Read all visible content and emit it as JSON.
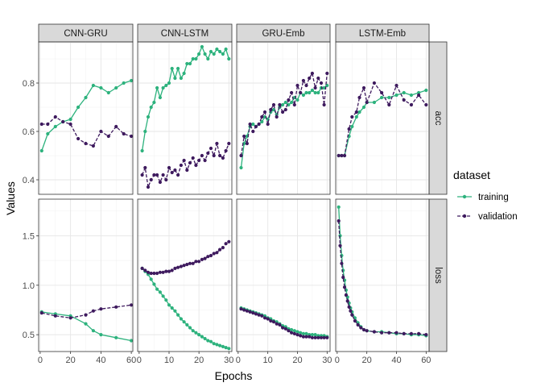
{
  "chart_data": {
    "type": "line",
    "xlabel": "Epochs",
    "ylabel": "Values",
    "legend_title": "dataset",
    "legend_position": "right",
    "grid": true,
    "colors": {
      "training": "#2db27d",
      "validation": "#3e1a5e"
    },
    "panels_x": [
      "CNN-GRU",
      "CNN-LSTM",
      "GRU-Emb",
      "LSTM-Emb"
    ],
    "panels_y": [
      "acc",
      "loss"
    ],
    "xlim": {
      "CNN-GRU": [
        -1,
        61
      ],
      "CNN-LSTM": [
        -0.5,
        31
      ],
      "GRU-Emb": [
        -0.5,
        31
      ],
      "LSTM-Emb": [
        -1,
        62
      ]
    },
    "xticks": {
      "CNN-GRU": [
        0,
        20,
        40,
        60
      ],
      "CNN-LSTM": [
        0,
        10,
        20,
        30
      ],
      "GRU-Emb": [
        0,
        10,
        20,
        30
      ],
      "LSTM-Emb": [
        0,
        20,
        40,
        60
      ]
    },
    "ylim": {
      "acc": [
        0.34,
        0.97
      ],
      "loss": [
        0.33,
        1.87
      ]
    },
    "yticks": {
      "acc": [
        0.4,
        0.6,
        0.8
      ],
      "loss": [
        0.5,
        1.0,
        1.5
      ]
    },
    "series": [
      {
        "model": "CNN-GRU",
        "metric": "acc",
        "name": "training",
        "x": [
          1,
          5,
          10,
          15,
          20,
          25,
          30,
          35,
          40,
          45,
          50,
          55,
          60
        ],
        "y": [
          0.52,
          0.59,
          0.62,
          0.64,
          0.65,
          0.7,
          0.74,
          0.79,
          0.78,
          0.76,
          0.78,
          0.8,
          0.81
        ]
      },
      {
        "model": "CNN-GRU",
        "metric": "acc",
        "name": "validation",
        "x": [
          1,
          5,
          10,
          15,
          20,
          25,
          30,
          35,
          40,
          45,
          50,
          55,
          60
        ],
        "y": [
          0.63,
          0.63,
          0.66,
          0.64,
          0.63,
          0.57,
          0.55,
          0.54,
          0.6,
          0.58,
          0.62,
          0.59,
          0.58
        ]
      },
      {
        "model": "CNN-GRU",
        "metric": "loss",
        "name": "training",
        "x": [
          1,
          10,
          20,
          30,
          35,
          40,
          50,
          60
        ],
        "y": [
          0.73,
          0.71,
          0.69,
          0.61,
          0.54,
          0.5,
          0.47,
          0.44
        ]
      },
      {
        "model": "CNN-GRU",
        "metric": "loss",
        "name": "validation",
        "x": [
          1,
          10,
          20,
          30,
          35,
          40,
          50,
          60
        ],
        "y": [
          0.72,
          0.69,
          0.67,
          0.7,
          0.74,
          0.76,
          0.78,
          0.8
        ]
      },
      {
        "model": "CNN-LSTM",
        "metric": "acc",
        "name": "training",
        "x": [
          1,
          2,
          3,
          4,
          5,
          6,
          7,
          8,
          9,
          10,
          11,
          12,
          13,
          14,
          15,
          16,
          17,
          18,
          19,
          20,
          21,
          22,
          23,
          24,
          25,
          26,
          27,
          28,
          29,
          30
        ],
        "y": [
          0.52,
          0.6,
          0.66,
          0.7,
          0.72,
          0.78,
          0.74,
          0.78,
          0.79,
          0.8,
          0.86,
          0.82,
          0.86,
          0.82,
          0.84,
          0.88,
          0.88,
          0.9,
          0.9,
          0.92,
          0.95,
          0.92,
          0.9,
          0.93,
          0.92,
          0.94,
          0.93,
          0.92,
          0.94,
          0.9
        ]
      },
      {
        "model": "CNN-LSTM",
        "metric": "acc",
        "name": "validation",
        "x": [
          1,
          2,
          3,
          4,
          5,
          6,
          7,
          8,
          9,
          10,
          11,
          12,
          13,
          14,
          15,
          16,
          17,
          18,
          19,
          20,
          21,
          22,
          23,
          24,
          25,
          26,
          27,
          28,
          29,
          30
        ],
        "y": [
          0.42,
          0.45,
          0.37,
          0.4,
          0.42,
          0.42,
          0.39,
          0.42,
          0.4,
          0.45,
          0.43,
          0.44,
          0.42,
          0.46,
          0.48,
          0.44,
          0.47,
          0.49,
          0.46,
          0.48,
          0.5,
          0.48,
          0.51,
          0.53,
          0.5,
          0.55,
          0.5,
          0.49,
          0.52,
          0.55
        ]
      },
      {
        "model": "CNN-LSTM",
        "metric": "loss",
        "name": "training",
        "x": [
          1,
          2,
          3,
          4,
          5,
          6,
          7,
          8,
          9,
          10,
          11,
          12,
          13,
          14,
          15,
          16,
          17,
          18,
          19,
          20,
          21,
          22,
          23,
          24,
          25,
          26,
          27,
          28,
          29,
          30
        ],
        "y": [
          1.17,
          1.14,
          1.11,
          1.06,
          1.01,
          0.96,
          0.93,
          0.89,
          0.85,
          0.8,
          0.77,
          0.74,
          0.7,
          0.66,
          0.63,
          0.6,
          0.57,
          0.54,
          0.52,
          0.5,
          0.48,
          0.46,
          0.44,
          0.43,
          0.41,
          0.4,
          0.39,
          0.38,
          0.37,
          0.36
        ]
      },
      {
        "model": "CNN-LSTM",
        "metric": "loss",
        "name": "validation",
        "x": [
          1,
          2,
          3,
          4,
          5,
          6,
          7,
          8,
          9,
          10,
          11,
          12,
          13,
          14,
          15,
          16,
          17,
          18,
          19,
          20,
          21,
          22,
          23,
          24,
          25,
          26,
          27,
          28,
          29,
          30
        ],
        "y": [
          1.17,
          1.15,
          1.13,
          1.12,
          1.12,
          1.12,
          1.13,
          1.13,
          1.14,
          1.14,
          1.15,
          1.17,
          1.18,
          1.19,
          1.2,
          1.21,
          1.22,
          1.22,
          1.24,
          1.24,
          1.26,
          1.27,
          1.29,
          1.3,
          1.32,
          1.33,
          1.36,
          1.38,
          1.42,
          1.44
        ]
      },
      {
        "model": "GRU-Emb",
        "metric": "acc",
        "name": "training",
        "x": [
          1,
          2,
          3,
          4,
          5,
          6,
          7,
          8,
          9,
          10,
          11,
          12,
          13,
          14,
          15,
          16,
          17,
          18,
          19,
          20,
          21,
          22,
          23,
          24,
          25,
          26,
          27,
          28,
          29,
          30
        ],
        "y": [
          0.45,
          0.55,
          0.58,
          0.62,
          0.63,
          0.62,
          0.63,
          0.64,
          0.66,
          0.65,
          0.68,
          0.69,
          0.67,
          0.7,
          0.71,
          0.72,
          0.71,
          0.72,
          0.74,
          0.73,
          0.76,
          0.75,
          0.76,
          0.76,
          0.77,
          0.76,
          0.76,
          0.78,
          0.78,
          0.79
        ]
      },
      {
        "model": "GRU-Emb",
        "metric": "acc",
        "name": "validation",
        "x": [
          1,
          2,
          3,
          4,
          5,
          6,
          7,
          8,
          9,
          10,
          11,
          12,
          13,
          14,
          15,
          16,
          17,
          18,
          19,
          20,
          21,
          22,
          23,
          24,
          25,
          26,
          27,
          28,
          29,
          30
        ],
        "y": [
          0.5,
          0.58,
          0.55,
          0.63,
          0.6,
          0.62,
          0.63,
          0.66,
          0.68,
          0.63,
          0.69,
          0.71,
          0.66,
          0.71,
          0.68,
          0.69,
          0.73,
          0.76,
          0.71,
          0.79,
          0.76,
          0.81,
          0.79,
          0.82,
          0.84,
          0.78,
          0.82,
          0.8,
          0.71,
          0.84
        ]
      },
      {
        "model": "GRU-Emb",
        "metric": "loss",
        "name": "training",
        "x": [
          1,
          2,
          3,
          4,
          5,
          6,
          7,
          8,
          9,
          10,
          11,
          12,
          13,
          14,
          15,
          16,
          17,
          18,
          19,
          20,
          21,
          22,
          23,
          24,
          25,
          26,
          27,
          28,
          29,
          30
        ],
        "y": [
          0.77,
          0.76,
          0.75,
          0.74,
          0.73,
          0.72,
          0.71,
          0.7,
          0.69,
          0.67,
          0.66,
          0.64,
          0.63,
          0.61,
          0.59,
          0.58,
          0.56,
          0.55,
          0.54,
          0.53,
          0.52,
          0.51,
          0.51,
          0.5,
          0.5,
          0.5,
          0.49,
          0.49,
          0.49,
          0.48
        ]
      },
      {
        "model": "GRU-Emb",
        "metric": "loss",
        "name": "validation",
        "x": [
          1,
          2,
          3,
          4,
          5,
          6,
          7,
          8,
          9,
          10,
          11,
          12,
          13,
          14,
          15,
          16,
          17,
          18,
          19,
          20,
          21,
          22,
          23,
          24,
          25,
          26,
          27,
          28,
          29,
          30
        ],
        "y": [
          0.76,
          0.75,
          0.74,
          0.73,
          0.72,
          0.71,
          0.7,
          0.69,
          0.67,
          0.66,
          0.64,
          0.63,
          0.61,
          0.6,
          0.57,
          0.56,
          0.54,
          0.52,
          0.51,
          0.5,
          0.49,
          0.48,
          0.48,
          0.48,
          0.47,
          0.47,
          0.47,
          0.47,
          0.47,
          0.47
        ]
      },
      {
        "model": "LSTM-Emb",
        "metric": "acc",
        "name": "training",
        "x": [
          1,
          3,
          5,
          8,
          10,
          13,
          15,
          18,
          20,
          25,
          30,
          35,
          40,
          45,
          50,
          55,
          60
        ],
        "y": [
          0.5,
          0.5,
          0.5,
          0.58,
          0.62,
          0.66,
          0.68,
          0.7,
          0.72,
          0.72,
          0.74,
          0.74,
          0.75,
          0.76,
          0.75,
          0.76,
          0.77
        ]
      },
      {
        "model": "LSTM-Emb",
        "metric": "acc",
        "name": "validation",
        "x": [
          1,
          3,
          5,
          8,
          10,
          13,
          15,
          18,
          20,
          25,
          30,
          35,
          40,
          45,
          50,
          55,
          60
        ],
        "y": [
          0.5,
          0.5,
          0.5,
          0.61,
          0.66,
          0.68,
          0.74,
          0.78,
          0.72,
          0.8,
          0.76,
          0.71,
          0.79,
          0.73,
          0.71,
          0.75,
          0.71
        ]
      },
      {
        "model": "LSTM-Emb",
        "metric": "loss",
        "name": "training",
        "x": [
          1,
          2,
          3,
          4,
          5,
          6,
          7,
          8,
          9,
          10,
          12,
          14,
          16,
          18,
          20,
          25,
          30,
          35,
          40,
          45,
          50,
          55,
          60
        ],
        "y": [
          1.79,
          1.5,
          1.3,
          1.15,
          1.05,
          0.95,
          0.88,
          0.82,
          0.77,
          0.73,
          0.67,
          0.62,
          0.58,
          0.55,
          0.54,
          0.53,
          0.53,
          0.52,
          0.51,
          0.51,
          0.5,
          0.5,
          0.49
        ]
      },
      {
        "model": "LSTM-Emb",
        "metric": "loss",
        "name": "validation",
        "x": [
          1,
          2,
          3,
          4,
          5,
          6,
          7,
          8,
          9,
          10,
          12,
          14,
          16,
          18,
          20,
          25,
          30,
          35,
          40,
          45,
          50,
          55,
          60
        ],
        "y": [
          1.65,
          1.4,
          1.22,
          1.08,
          0.98,
          0.9,
          0.84,
          0.78,
          0.74,
          0.7,
          0.64,
          0.6,
          0.57,
          0.55,
          0.54,
          0.53,
          0.52,
          0.52,
          0.52,
          0.51,
          0.51,
          0.51,
          0.5
        ]
      }
    ]
  }
}
